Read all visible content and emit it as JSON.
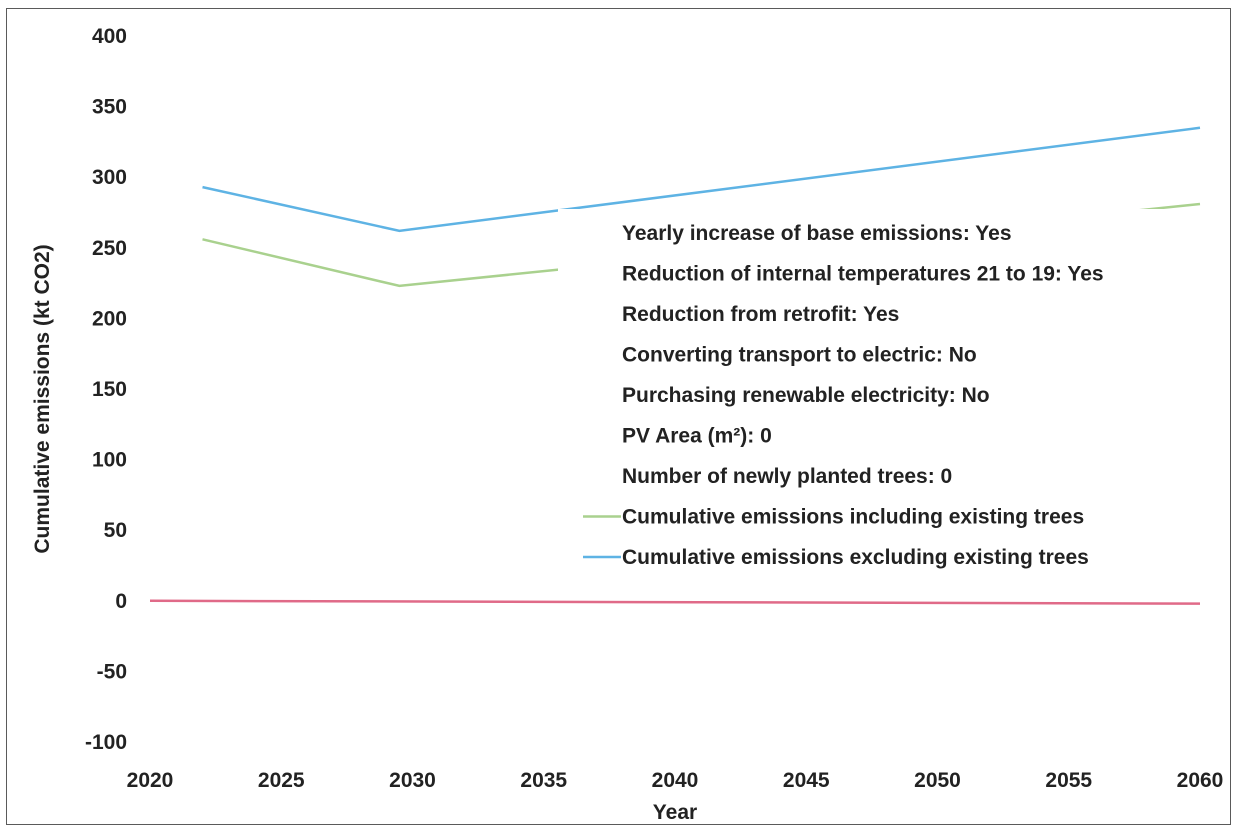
{
  "chart_data": {
    "type": "line",
    "title": "",
    "xlabel": "Year",
    "ylabel": "Cumulative emissions (kt CO2)",
    "xlim": [
      2020,
      2060
    ],
    "ylim": [
      -100,
      400
    ],
    "x_ticks": [
      2020,
      2025,
      2030,
      2035,
      2040,
      2045,
      2050,
      2055,
      2060
    ],
    "y_ticks": [
      -100,
      -50,
      0,
      50,
      100,
      150,
      200,
      250,
      300,
      350,
      400
    ],
    "grid": false,
    "legend_position": "center-right",
    "legend_settings": [
      "Yearly increase of base emissions: Yes",
      "Reduction of internal temperatures 21 to 19: Yes",
      "Reduction from retrofit: Yes",
      "Converting transport to electric: No",
      "Purchasing renewable electricity: No",
      "PV Area (m²): 0",
      "Number of newly planted trees: 0"
    ],
    "series": [
      {
        "name": "Cumulative emissions including existing trees",
        "color": "#a9d18e",
        "x": [
          2022,
          2029.5,
          2060
        ],
        "y": [
          256,
          223,
          281
        ]
      },
      {
        "name": "Cumulative emissions excluding existing trees",
        "color": "#5eb3e4",
        "x": [
          2022,
          2029.5,
          2060
        ],
        "y": [
          293,
          262,
          335
        ]
      },
      {
        "color": "#e06a88",
        "x": [
          2020,
          2060
        ],
        "y": [
          0,
          -2
        ]
      }
    ]
  }
}
